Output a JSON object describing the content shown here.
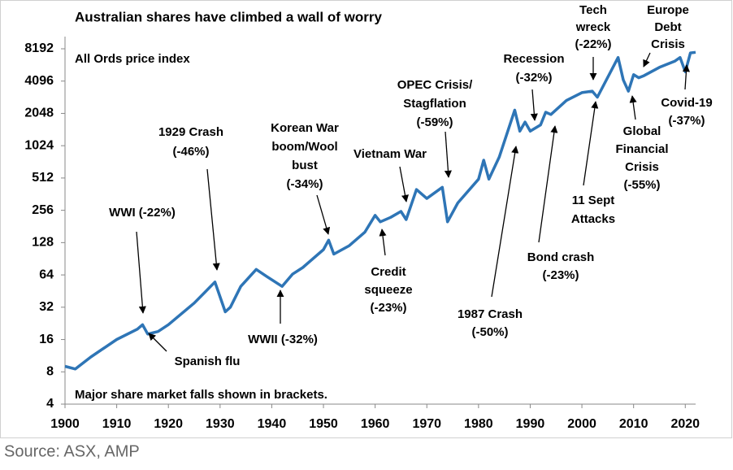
{
  "chart_data": {
    "type": "line",
    "title": "Australian shares have climbed a wall of worry",
    "subtitle": "All Ords price index",
    "note": "Major share market falls shown in brackets.",
    "source": "Source: ASX, AMP",
    "log_scale": "y",
    "color": "#2e75b6",
    "xlim": [
      1900,
      2022
    ],
    "xticks": [
      1900,
      1910,
      1920,
      1930,
      1940,
      1950,
      1960,
      1970,
      1980,
      1990,
      2000,
      2010,
      2020
    ],
    "ylim": [
      4,
      8192
    ],
    "yticks": [
      4,
      8,
      16,
      32,
      64,
      128,
      256,
      512,
      1024,
      2048,
      4096,
      8192
    ],
    "x": [
      1900,
      1902,
      1905,
      1910,
      1914,
      1915,
      1916,
      1918,
      1920,
      1925,
      1929,
      1930,
      1931,
      1932,
      1934,
      1937,
      1939,
      1942,
      1944,
      1946,
      1950,
      1951,
      1952,
      1955,
      1958,
      1960,
      1961,
      1963,
      1965,
      1966,
      1968,
      1970,
      1973,
      1974,
      1976,
      1980,
      1981,
      1982,
      1984,
      1987,
      1988,
      1989,
      1990,
      1992,
      1993,
      1994,
      1997,
      2000,
      2002,
      2003,
      2007,
      2008,
      2009,
      2010,
      2011,
      2012,
      2015,
      2018,
      2019,
      2020,
      2021,
      2022
    ],
    "values": [
      9,
      8.5,
      11,
      16,
      20,
      22,
      18,
      19,
      22,
      35,
      55,
      40,
      29,
      32,
      50,
      72,
      62,
      50,
      65,
      75,
      110,
      135,
      100,
      120,
      160,
      230,
      200,
      220,
      250,
      210,
      400,
      330,
      420,
      200,
      300,
      500,
      750,
      500,
      800,
      2200,
      1400,
      1700,
      1400,
      1600,
      2100,
      2000,
      2700,
      3200,
      3300,
      2900,
      6800,
      4200,
      3300,
      4700,
      4400,
      4600,
      5500,
      6300,
      6800,
      5000,
      7500,
      7600
    ],
    "annotations": [
      [
        "WWI (-22%)"
      ],
      [
        "Spanish flu"
      ],
      [
        "1929 Crash",
        "(-46%)"
      ],
      [
        "Korean War",
        "boom/Wool",
        "bust",
        "(-34%)"
      ],
      [
        "Vietnam War"
      ],
      [
        "OPEC Crisis/",
        "Stagflation",
        "(-59%)"
      ],
      [
        "Credit",
        "squeeze",
        "(-23%)"
      ],
      [
        "WWII (-32%)"
      ],
      [
        "Recession",
        "(-32%)"
      ],
      [
        "Tech",
        "wreck",
        "(-22%)"
      ],
      [
        "Europe",
        "Debt",
        "Crisis"
      ],
      [
        "1987 Crash",
        "(-50%)"
      ],
      [
        "Bond crash",
        "(-23%)"
      ],
      [
        "11 Sept",
        "Attacks"
      ],
      [
        "Global",
        "Financial",
        "Crisis",
        "(-55%)"
      ],
      [
        "Covid-19",
        "(-37%)"
      ]
    ]
  }
}
